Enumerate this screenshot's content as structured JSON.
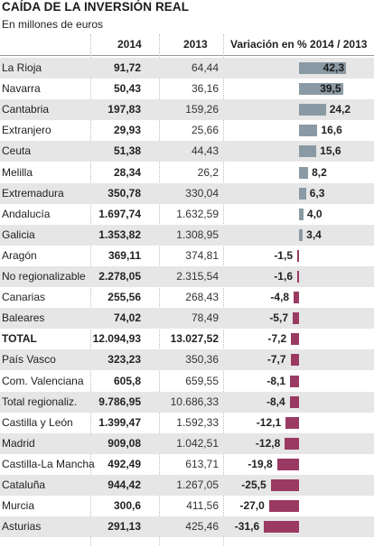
{
  "header": {
    "title": "CAÍDA DE LA INVERSIÓN REAL",
    "subtitle": "En millones de euros"
  },
  "chart_data": {
    "type": "table",
    "columns": [
      "2014",
      "2013",
      "Variación en % 2014 / 2013"
    ],
    "rows": [
      {
        "name": "La Rioja",
        "v2014": "91,72",
        "v2013": "64,44",
        "var": 42.3,
        "var_label": "42,3"
      },
      {
        "name": "Navarra",
        "v2014": "50,43",
        "v2013": "36,16",
        "var": 39.5,
        "var_label": "39,5"
      },
      {
        "name": "Cantabria",
        "v2014": "197,83",
        "v2013": "159,26",
        "var": 24.2,
        "var_label": "24,2"
      },
      {
        "name": "Extranjero",
        "v2014": "29,93",
        "v2013": "25,66",
        "var": 16.6,
        "var_label": "16,6"
      },
      {
        "name": "Ceuta",
        "v2014": "51,38",
        "v2013": "44,43",
        "var": 15.6,
        "var_label": "15,6"
      },
      {
        "name": "Melilla",
        "v2014": "28,34",
        "v2013": "26,2",
        "var": 8.2,
        "var_label": "8,2"
      },
      {
        "name": "Extremadura",
        "v2014": "350,78",
        "v2013": "330,04",
        "var": 6.3,
        "var_label": "6,3"
      },
      {
        "name": "Andalucía",
        "v2014": "1.697,74",
        "v2013": "1.632,59",
        "var": 4.0,
        "var_label": "4,0"
      },
      {
        "name": "Galicia",
        "v2014": "1.353,82",
        "v2013": "1.308,95",
        "var": 3.4,
        "var_label": "3,4"
      },
      {
        "name": "Aragón",
        "v2014": "369,11",
        "v2013": "374,81",
        "var": -1.5,
        "var_label": "-1,5"
      },
      {
        "name": "No regionalizable",
        "v2014": "2.278,05",
        "v2013": "2.315,54",
        "var": -1.6,
        "var_label": "-1,6"
      },
      {
        "name": "Canarias",
        "v2014": "255,56",
        "v2013": "268,43",
        "var": -4.8,
        "var_label": "-4,8"
      },
      {
        "name": "Baleares",
        "v2014": "74,02",
        "v2013": "78,49",
        "var": -5.7,
        "var_label": "-5,7"
      },
      {
        "name": "TOTAL",
        "v2014": "12.094,93",
        "v2013": "13.027,52",
        "var": -7.2,
        "var_label": "-7,2",
        "total": true
      },
      {
        "name": "País Vasco",
        "v2014": "323,23",
        "v2013": "350,36",
        "var": -7.7,
        "var_label": "-7,7"
      },
      {
        "name": "Com. Valenciana",
        "v2014": "605,8",
        "v2013": "659,55",
        "var": -8.1,
        "var_label": "-8,1"
      },
      {
        "name": "Total regionaliz.",
        "v2014": "9.786,95",
        "v2013": "10.686,33",
        "var": -8.4,
        "var_label": "-8,4"
      },
      {
        "name": "Castilla y León",
        "v2014": "1.399,47",
        "v2013": "1.592,33",
        "var": -12.1,
        "var_label": "-12,1"
      },
      {
        "name": "Madrid",
        "v2014": "909,08",
        "v2013": "1.042,51",
        "var": -12.8,
        "var_label": "-12,8"
      },
      {
        "name": "Castilla-La Mancha",
        "v2014": "492,49",
        "v2013": "613,71",
        "var": -19.8,
        "var_label": "-19,8"
      },
      {
        "name": "Cataluña",
        "v2014": "944,42",
        "v2013": "1.267,05",
        "var": -25.5,
        "var_label": "-25,5"
      },
      {
        "name": "Murcia",
        "v2014": "300,6",
        "v2013": "411,56",
        "var": -27.0,
        "var_label": "-27,0"
      },
      {
        "name": "Asturias",
        "v2014": "291,13",
        "v2013": "425,46",
        "var": -31.6,
        "var_label": "-31,6"
      }
    ],
    "colors": {
      "positive": "#8a9aa4",
      "negative": "#9a3a63",
      "row_shade": "#e6e6e6"
    }
  }
}
